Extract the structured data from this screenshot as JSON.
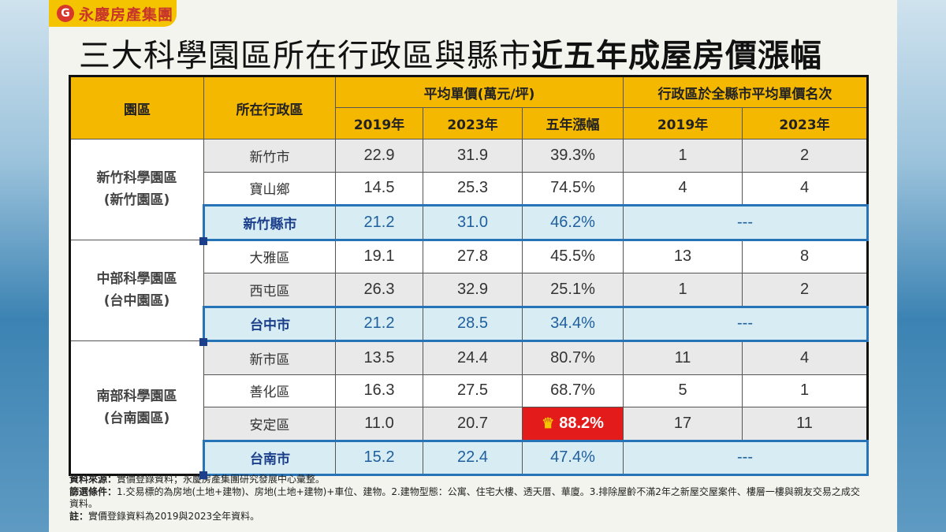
{
  "brand": {
    "name": "永慶房產集團",
    "logo_glyph": "G"
  },
  "title": {
    "normal": "三大科學園區所在行政區與縣市",
    "bold": "近五年成屋房價漲幅"
  },
  "table": {
    "headers": {
      "park": "園區",
      "district": "所在行政區",
      "avg_price": "平均單價(萬元/坪)",
      "rank": "行政區於全縣市平均單價名次",
      "y2019": "2019年",
      "y2023": "2023年",
      "growth": "五年漲幅",
      "rank2019": "2019年",
      "rank2023": "2023年"
    },
    "groups": [
      {
        "park": "新竹科學園區",
        "park_sub": "(新竹園區)",
        "rows": [
          {
            "district": "新竹市",
            "p2019": "22.9",
            "p2023": "31.9",
            "growth": "39.3%",
            "r2019": "1",
            "r2023": "2"
          },
          {
            "district": "寶山鄉",
            "p2019": "14.5",
            "p2023": "25.3",
            "growth": "74.5%",
            "r2019": "4",
            "r2023": "4"
          },
          {
            "district": "新竹縣市",
            "p2019": "21.2",
            "p2023": "31.0",
            "growth": "46.2%",
            "rank": "---"
          }
        ]
      },
      {
        "park": "中部科學園區",
        "park_sub": "(台中園區)",
        "rows": [
          {
            "district": "大雅區",
            "p2019": "19.1",
            "p2023": "27.8",
            "growth": "45.5%",
            "r2019": "13",
            "r2023": "8"
          },
          {
            "district": "西屯區",
            "p2019": "26.3",
            "p2023": "32.9",
            "growth": "25.1%",
            "r2019": "1",
            "r2023": "2"
          },
          {
            "district": "台中市",
            "p2019": "21.2",
            "p2023": "28.5",
            "growth": "34.4%",
            "rank": "---"
          }
        ]
      },
      {
        "park": "南部科學園區",
        "park_sub": "(台南園區)",
        "rows": [
          {
            "district": "新市區",
            "p2019": "13.5",
            "p2023": "24.4",
            "growth": "80.7%",
            "r2019": "11",
            "r2023": "4"
          },
          {
            "district": "善化區",
            "p2019": "16.3",
            "p2023": "27.5",
            "growth": "68.7%",
            "r2019": "5",
            "r2023": "1"
          },
          {
            "district": "安定區",
            "p2019": "11.0",
            "p2023": "20.7",
            "growth": "88.2%",
            "r2019": "17",
            "r2023": "11"
          },
          {
            "district": "台南市",
            "p2019": "15.2",
            "p2023": "22.4",
            "growth": "47.4%",
            "rank": "---"
          }
        ]
      }
    ],
    "highlight_color": "#e41b1b",
    "header_color": "#f5b800",
    "total_row_color": "#d7ecf3"
  },
  "notes": {
    "source_label": "資料來源：",
    "source_text": "實價登錄資料；永慶房產集團研究發展中心彙整。",
    "filter_label": "篩選條件：",
    "filter_text": "1.交易標的為房地(土地+建物)、房地(土地+建物)+車位、建物。2.建物型態：公寓、住宅大樓、透天厝、華廈。3.排除屋齡不滿2年之新屋交屋案件、樓層一樓與親友交易之成交資料。",
    "note_label": "註：",
    "note_text": "實價登錄資料為2019與2023全年資料。"
  }
}
